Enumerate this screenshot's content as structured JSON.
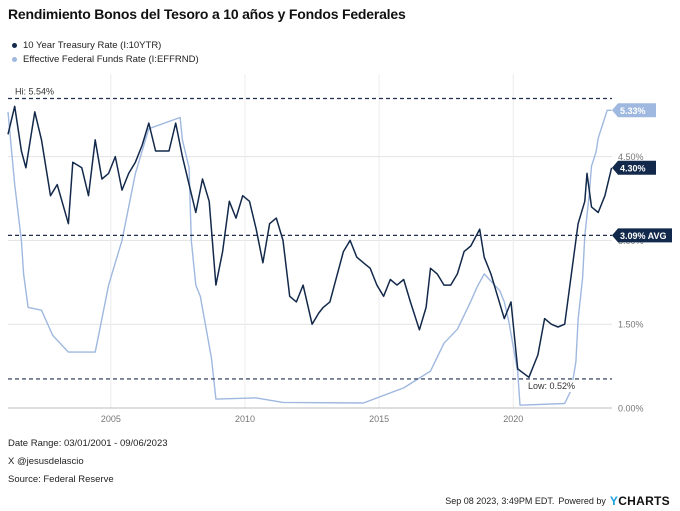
{
  "chart_data": {
    "type": "line",
    "title": "Rendimiento Bonos del Tesoro a 10 años y Fondos Federales",
    "x_ticks": [
      "2005",
      "2010",
      "2015",
      "2020"
    ],
    "y_ticks": [
      "0.00%",
      "1.50%",
      "3.00%",
      "4.50%"
    ],
    "ylim": [
      0,
      5.8
    ],
    "xlim": [
      "2001-03-01",
      "2023-09-06"
    ],
    "grid": true,
    "legend_position": "top-left",
    "series": [
      {
        "name": "10 Year Treasury Rate (I:10YTR)",
        "color": "#13294b",
        "x": [
          "2001-03",
          "2001-06",
          "2001-09",
          "2001-11",
          "2002-03",
          "2002-06",
          "2002-10",
          "2003-01",
          "2003-06",
          "2003-08",
          "2003-12",
          "2004-03",
          "2004-06",
          "2004-09",
          "2004-12",
          "2005-03",
          "2005-06",
          "2005-09",
          "2005-12",
          "2006-03",
          "2006-06",
          "2006-09",
          "2006-12",
          "2007-03",
          "2007-06",
          "2007-09",
          "2007-12",
          "2008-03",
          "2008-06",
          "2008-09",
          "2008-12",
          "2009-03",
          "2009-06",
          "2009-09",
          "2009-12",
          "2010-03",
          "2010-06",
          "2010-09",
          "2010-12",
          "2011-03",
          "2011-06",
          "2011-09",
          "2011-12",
          "2012-03",
          "2012-07",
          "2012-10",
          "2012-12",
          "2013-03",
          "2013-05",
          "2013-09",
          "2013-12",
          "2014-03",
          "2014-06",
          "2014-09",
          "2014-12",
          "2015-03",
          "2015-06",
          "2015-09",
          "2015-12",
          "2016-03",
          "2016-07",
          "2016-10",
          "2016-12",
          "2017-03",
          "2017-06",
          "2017-09",
          "2017-12",
          "2018-03",
          "2018-06",
          "2018-10",
          "2018-12",
          "2019-03",
          "2019-06",
          "2019-09",
          "2019-12",
          "2020-03",
          "2020-08",
          "2020-12",
          "2021-03",
          "2021-06",
          "2021-09",
          "2021-12",
          "2022-03",
          "2022-06",
          "2022-09",
          "2022-10",
          "2022-12",
          "2023-03",
          "2023-06",
          "2023-09"
        ],
        "values": [
          4.9,
          5.4,
          4.6,
          4.3,
          5.3,
          4.8,
          3.8,
          4.0,
          3.3,
          4.4,
          4.3,
          3.8,
          4.8,
          4.1,
          4.2,
          4.5,
          3.9,
          4.2,
          4.4,
          4.7,
          5.1,
          4.6,
          4.6,
          4.6,
          5.1,
          4.5,
          4.0,
          3.5,
          4.1,
          3.7,
          2.2,
          2.8,
          3.7,
          3.4,
          3.8,
          3.7,
          3.2,
          2.6,
          3.3,
          3.4,
          3.0,
          2.0,
          1.9,
          2.2,
          1.5,
          1.7,
          1.8,
          1.9,
          2.2,
          2.8,
          3.0,
          2.7,
          2.6,
          2.5,
          2.2,
          2.0,
          2.3,
          2.2,
          2.3,
          1.9,
          1.4,
          1.8,
          2.5,
          2.4,
          2.2,
          2.2,
          2.4,
          2.8,
          2.9,
          3.2,
          2.7,
          2.4,
          2.0,
          1.6,
          1.9,
          0.7,
          0.55,
          0.95,
          1.6,
          1.5,
          1.45,
          1.5,
          2.4,
          3.3,
          3.7,
          4.2,
          3.6,
          3.5,
          3.8,
          4.3
        ]
      },
      {
        "name": "Effective Federal Funds Rate (I:EFFRND)",
        "color": "#9fb8df",
        "x": [
          "2001-03",
          "2001-06",
          "2001-09",
          "2001-10",
          "2001-12",
          "2002-06",
          "2002-11",
          "2003-06",
          "2004-06",
          "2004-08",
          "2004-12",
          "2005-06",
          "2005-12",
          "2006-06",
          "2007-08",
          "2007-09",
          "2007-12",
          "2008-01",
          "2008-03",
          "2008-05",
          "2008-10",
          "2008-12",
          "2010-06",
          "2011-06",
          "2014-06",
          "2015-12",
          "2016-12",
          "2017-03",
          "2017-06",
          "2017-12",
          "2018-03",
          "2018-06",
          "2018-09",
          "2018-12",
          "2019-07",
          "2019-09",
          "2019-11",
          "2020-03",
          "2020-04",
          "2021-12",
          "2022-03",
          "2022-05",
          "2022-06",
          "2022-08",
          "2022-09",
          "2022-11",
          "2022-12",
          "2023-02",
          "2023-03",
          "2023-05",
          "2023-07",
          "2023-09"
        ],
        "values": [
          5.3,
          4.0,
          3.0,
          2.4,
          1.8,
          1.75,
          1.3,
          1.0,
          1.0,
          1.4,
          2.2,
          3.0,
          4.2,
          5.0,
          5.2,
          4.8,
          4.3,
          3.0,
          2.2,
          2.0,
          0.9,
          0.16,
          0.18,
          0.1,
          0.09,
          0.36,
          0.66,
          0.91,
          1.16,
          1.41,
          1.66,
          1.91,
          2.18,
          2.4,
          2.1,
          1.9,
          1.55,
          0.65,
          0.05,
          0.08,
          0.33,
          0.83,
          1.58,
          2.33,
          3.08,
          3.83,
          4.33,
          4.58,
          4.83,
          5.08,
          5.33,
          5.33
        ]
      }
    ],
    "reference_lines": [
      {
        "label": "Hi: 5.54%",
        "value": 5.54
      },
      {
        "label": "3.09% AVG",
        "value": 3.09
      },
      {
        "label": "Low: 0.52%",
        "value": 0.52
      }
    ],
    "end_labels": [
      {
        "label": "5.33%",
        "value": 5.33,
        "color": "#9fb8df"
      },
      {
        "label": "4.30%",
        "value": 4.3,
        "color": "#13294b"
      }
    ]
  },
  "footer": {
    "date_range": "Date Range: 03/01/2001 - 09/06/2023",
    "author": "X @jesusdelascio",
    "source": "Source: Federal Reserve",
    "timestamp": "Sep 08 2023, 3:49PM EDT.",
    "powered_by": "Powered by",
    "brand_y": "Y",
    "brand_rest": "CHARTS"
  }
}
